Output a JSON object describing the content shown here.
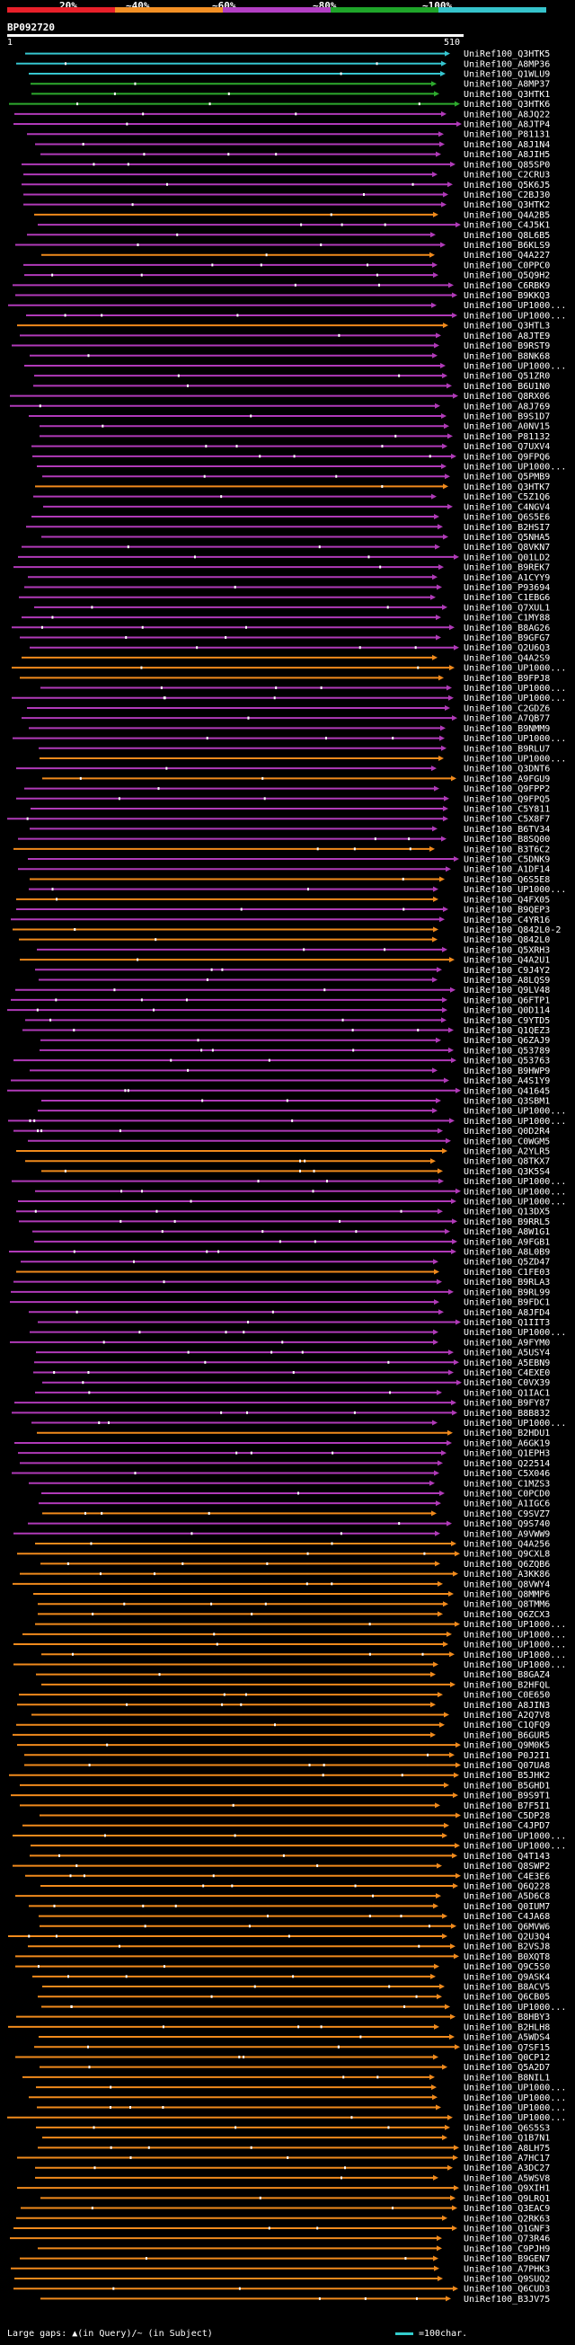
{
  "legend": {
    "percent_labels": [
      "20%",
      "~40%",
      "~60%",
      "~80%",
      "~100%"
    ],
    "colors": [
      "#e8202a",
      "#f39025",
      "#b33fc4",
      "#1fa52a",
      "#36c4cc"
    ]
  },
  "query": {
    "id": "BP092720",
    "start": "1",
    "end": "510"
  },
  "colors": {
    "orange": "#f08a1c",
    "magenta": "#b03ab8",
    "cyan": "#36c6d0",
    "green": "#2eaa2e",
    "white": "#ffffff",
    "gap": "#222"
  },
  "hits": [
    {
      "label": "UniRef100_Q3HTK5",
      "color": "cyan"
    },
    {
      "label": "UniRef100_A8MP36",
      "color": "cyan"
    },
    {
      "label": "UniRef100_Q1WLU9",
      "color": "cyan"
    },
    {
      "label": "UniRef100_A8MP37",
      "color": "green"
    },
    {
      "label": "UniRef100_Q3HTK1",
      "color": "green"
    },
    {
      "label": "UniRef100_Q3HTK6",
      "color": "green"
    },
    {
      "label": "UniRef100_A8JQ22",
      "color": "magenta"
    },
    {
      "label": "UniRef100_A8JTP4",
      "color": "magenta"
    },
    {
      "label": "UniRef100_P81131",
      "color": "magenta"
    },
    {
      "label": "UniRef100_A8J1N4",
      "color": "magenta"
    },
    {
      "label": "UniRef100_A8JIH5",
      "color": "magenta"
    },
    {
      "label": "UniRef100_Q85SP0",
      "color": "magenta"
    },
    {
      "label": "UniRef100_C2CRU3",
      "color": "magenta"
    },
    {
      "label": "UniRef100_Q5K6J5",
      "color": "magenta"
    },
    {
      "label": "UniRef100_C2BJ30",
      "color": "magenta"
    },
    {
      "label": "UniRef100_Q3HTK2",
      "color": "magenta"
    },
    {
      "label": "UniRef100_Q4A2B5",
      "color": "orange"
    },
    {
      "label": "UniRef100_C4J5K1",
      "color": "magenta"
    },
    {
      "label": "UniRef100_Q8L6B5",
      "color": "magenta"
    },
    {
      "label": "UniRef100_B6KLS9",
      "color": "magenta"
    },
    {
      "label": "UniRef100_Q4A227",
      "color": "orange"
    },
    {
      "label": "UniRef100_C0PPC0",
      "color": "magenta"
    },
    {
      "label": "UniRef100_Q5Q9H2",
      "color": "magenta"
    },
    {
      "label": "UniRef100_C6RBK9",
      "color": "magenta"
    },
    {
      "label": "UniRef100_B9KKQ3",
      "color": "magenta"
    },
    {
      "label": "UniRef100_UP1000...",
      "color": "magenta"
    },
    {
      "label": "UniRef100_UP1000...",
      "color": "magenta"
    },
    {
      "label": "UniRef100_Q3HTL3",
      "color": "orange"
    },
    {
      "label": "UniRef100_A8JTE9",
      "color": "magenta"
    },
    {
      "label": "UniRef100_B9RST9",
      "color": "magenta"
    },
    {
      "label": "UniRef100_B8NK68",
      "color": "magenta"
    },
    {
      "label": "UniRef100_UP1000...",
      "color": "magenta"
    },
    {
      "label": "UniRef100_Q51ZR0",
      "color": "magenta"
    },
    {
      "label": "UniRef100_B6U1N0",
      "color": "magenta"
    },
    {
      "label": "UniRef100_Q8RX06",
      "color": "magenta"
    },
    {
      "label": "UniRef100_A8J769",
      "color": "magenta"
    },
    {
      "label": "UniRef100_B9S1D7",
      "color": "magenta"
    },
    {
      "label": "UniRef100_A0NV15",
      "color": "magenta"
    },
    {
      "label": "UniRef100_P81132",
      "color": "magenta"
    },
    {
      "label": "UniRef100_Q7UXV4",
      "color": "magenta"
    },
    {
      "label": "UniRef100_Q9FPQ6",
      "color": "magenta"
    },
    {
      "label": "UniRef100_UP1000...",
      "color": "magenta"
    },
    {
      "label": "UniRef100_Q5PMB9",
      "color": "magenta"
    },
    {
      "label": "UniRef100_Q3HTK7",
      "color": "orange"
    },
    {
      "label": "UniRef100_C5Z1Q6",
      "color": "magenta"
    },
    {
      "label": "UniRef100_C4NGV4",
      "color": "magenta"
    },
    {
      "label": "UniRef100_Q6S5E6",
      "color": "magenta"
    },
    {
      "label": "UniRef100_B2HSI7",
      "color": "magenta"
    },
    {
      "label": "UniRef100_Q5NHA5",
      "color": "magenta"
    },
    {
      "label": "UniRef100_Q8VKN7",
      "color": "magenta"
    },
    {
      "label": "UniRef100_Q01LD2",
      "color": "magenta"
    },
    {
      "label": "UniRef100_B9REK7",
      "color": "magenta"
    },
    {
      "label": "UniRef100_A1CYY9",
      "color": "magenta"
    },
    {
      "label": "UniRef100_P93694",
      "color": "magenta"
    },
    {
      "label": "UniRef100_C1EBG6",
      "color": "magenta"
    },
    {
      "label": "UniRef100_Q7XUL1",
      "color": "magenta"
    },
    {
      "label": "UniRef100_C1MY88",
      "color": "magenta"
    },
    {
      "label": "UniRef100_B8AG26",
      "color": "magenta"
    },
    {
      "label": "UniRef100_B9GFG7",
      "color": "magenta"
    },
    {
      "label": "UniRef100_Q2U6Q3",
      "color": "magenta"
    },
    {
      "label": "UniRef100_Q4A2S9",
      "color": "orange"
    },
    {
      "label": "UniRef100_UP1000...",
      "color": "orange"
    },
    {
      "label": "UniRef100_B9FPJ8",
      "color": "orange"
    },
    {
      "label": "UniRef100_UP1000...",
      "color": "magenta"
    },
    {
      "label": "UniRef100_UP1000...",
      "color": "magenta"
    },
    {
      "label": "UniRef100_C2GDZ6",
      "color": "magenta"
    },
    {
      "label": "UniRef100_A7QB77",
      "color": "magenta"
    },
    {
      "label": "UniRef100_B9NMM9",
      "color": "magenta"
    },
    {
      "label": "UniRef100_UP1000...",
      "color": "magenta"
    },
    {
      "label": "UniRef100_B9RLU7",
      "color": "magenta"
    },
    {
      "label": "UniRef100_UP1000...",
      "color": "orange"
    },
    {
      "label": "UniRef100_Q3DNT6",
      "color": "magenta"
    },
    {
      "label": "UniRef100_A9FGU9",
      "color": "orange"
    },
    {
      "label": "UniRef100_Q9FPP2",
      "color": "magenta"
    },
    {
      "label": "UniRef100_Q9FPQ5",
      "color": "magenta"
    },
    {
      "label": "UniRef100_C5Y811",
      "color": "magenta"
    },
    {
      "label": "UniRef100_C5X8F7",
      "color": "magenta"
    },
    {
      "label": "UniRef100_B6TV34",
      "color": "magenta"
    },
    {
      "label": "UniRef100_B8SQ00",
      "color": "magenta"
    },
    {
      "label": "UniRef100_B3T6C2",
      "color": "orange"
    },
    {
      "label": "UniRef100_C5DNK9",
      "color": "magenta"
    },
    {
      "label": "UniRef100_A1DF14",
      "color": "magenta"
    },
    {
      "label": "UniRef100_Q6S5E8",
      "color": "orange"
    },
    {
      "label": "UniRef100_UP1000...",
      "color": "magenta"
    },
    {
      "label": "UniRef100_Q4FX05",
      "color": "orange"
    },
    {
      "label": "UniRef100_B9QEP3",
      "color": "magenta"
    },
    {
      "label": "UniRef100_C4YR16",
      "color": "magenta"
    },
    {
      "label": "UniRef100_Q842L0-2",
      "color": "orange"
    },
    {
      "label": "UniRef100_Q842L0",
      "color": "orange"
    },
    {
      "label": "UniRef100_Q5XRH3",
      "color": "magenta"
    },
    {
      "label": "UniRef100_Q4A2U1",
      "color": "orange"
    },
    {
      "label": "UniRef100_C9J4Y2",
      "color": "magenta"
    },
    {
      "label": "UniRef100_A8LQS9",
      "color": "magenta"
    },
    {
      "label": "UniRef100_Q9LV48",
      "color": "magenta"
    },
    {
      "label": "UniRef100_Q6FTP1",
      "color": "magenta"
    },
    {
      "label": "UniRef100_Q0D114",
      "color": "magenta"
    },
    {
      "label": "UniRef100_C9YTD5",
      "color": "magenta"
    },
    {
      "label": "UniRef100_Q1QEZ3",
      "color": "magenta"
    },
    {
      "label": "UniRef100_Q6ZAJ9",
      "color": "magenta"
    },
    {
      "label": "UniRef100_Q53789",
      "color": "magenta"
    },
    {
      "label": "UniRef100_Q53763",
      "color": "magenta"
    },
    {
      "label": "UniRef100_B9HWP9",
      "color": "magenta"
    },
    {
      "label": "UniRef100_A4S1Y9",
      "color": "magenta"
    },
    {
      "label": "UniRef100_Q41645",
      "color": "magenta"
    },
    {
      "label": "UniRef100_Q3SBM1",
      "color": "magenta"
    },
    {
      "label": "UniRef100_UP1000...",
      "color": "magenta"
    },
    {
      "label": "UniRef100_UP1000...",
      "color": "magenta"
    },
    {
      "label": "UniRef100_Q0D2R4",
      "color": "magenta"
    },
    {
      "label": "UniRef100_C0WGM5",
      "color": "magenta"
    },
    {
      "label": "UniRef100_A2YLR5",
      "color": "orange"
    },
    {
      "label": "UniRef100_Q8TKX7",
      "color": "orange"
    },
    {
      "label": "UniRef100_Q3K5S4",
      "color": "orange"
    },
    {
      "label": "UniRef100_UP1000...",
      "color": "magenta"
    },
    {
      "label": "UniRef100_UP1000...",
      "color": "magenta"
    },
    {
      "label": "UniRef100_UP1000...",
      "color": "magenta"
    },
    {
      "label": "UniRef100_Q13DX5",
      "color": "magenta"
    },
    {
      "label": "UniRef100_B9RRL5",
      "color": "magenta"
    },
    {
      "label": "UniRef100_A8W1G1",
      "color": "magenta"
    },
    {
      "label": "UniRef100_A9FGB1",
      "color": "magenta"
    },
    {
      "label": "UniRef100_A8L0B9",
      "color": "magenta"
    },
    {
      "label": "UniRef100_Q5ZD47",
      "color": "magenta"
    },
    {
      "label": "UniRef100_C1FE03",
      "color": "orange"
    },
    {
      "label": "UniRef100_B9RLA3",
      "color": "magenta"
    },
    {
      "label": "UniRef100_B9RL99",
      "color": "magenta"
    },
    {
      "label": "UniRef100_B9FDC1",
      "color": "magenta"
    },
    {
      "label": "UniRef100_A8JFD4",
      "color": "magenta"
    },
    {
      "label": "UniRef100_Q1IIT3",
      "color": "magenta"
    },
    {
      "label": "UniRef100_UP1000...",
      "color": "magenta"
    },
    {
      "label": "UniRef100_A9FYM0",
      "color": "magenta"
    },
    {
      "label": "UniRef100_A5USY4",
      "color": "magenta"
    },
    {
      "label": "UniRef100_A5EBN9",
      "color": "magenta"
    },
    {
      "label": "UniRef100_C4EXE0",
      "color": "magenta"
    },
    {
      "label": "UniRef100_C0VX39",
      "color": "magenta"
    },
    {
      "label": "UniRef100_Q1IAC1",
      "color": "magenta"
    },
    {
      "label": "UniRef100_B9FY87",
      "color": "magenta"
    },
    {
      "label": "UniRef100_B8B832",
      "color": "magenta"
    },
    {
      "label": "UniRef100_UP1000...",
      "color": "magenta"
    },
    {
      "label": "UniRef100_B2HDU1",
      "color": "orange"
    },
    {
      "label": "UniRef100_A6GK19",
      "color": "magenta"
    },
    {
      "label": "UniRef100_Q1EPH3",
      "color": "magenta"
    },
    {
      "label": "UniRef100_Q22514",
      "color": "magenta"
    },
    {
      "label": "UniRef100_C5X046",
      "color": "magenta"
    },
    {
      "label": "UniRef100_C1MZS3",
      "color": "magenta"
    },
    {
      "label": "UniRef100_C0PCD0",
      "color": "magenta"
    },
    {
      "label": "UniRef100_A1IGC6",
      "color": "magenta"
    },
    {
      "label": "UniRef100_C9SVZ7",
      "color": "orange"
    },
    {
      "label": "UniRef100_Q9S740",
      "color": "magenta"
    },
    {
      "label": "UniRef100_A9VWW9",
      "color": "magenta"
    },
    {
      "label": "UniRef100_Q4A256",
      "color": "orange"
    },
    {
      "label": "UniRef100_Q9CXL8",
      "color": "orange"
    },
    {
      "label": "UniRef100_Q6ZQB6",
      "color": "orange"
    },
    {
      "label": "UniRef100_A3KK86",
      "color": "orange"
    },
    {
      "label": "UniRef100_Q8VWY4",
      "color": "orange"
    },
    {
      "label": "UniRef100_Q8MMP6",
      "color": "orange"
    },
    {
      "label": "UniRef100_Q8TMM6",
      "color": "orange"
    },
    {
      "label": "UniRef100_Q6ZCX3",
      "color": "orange"
    },
    {
      "label": "UniRef100_UP1000...",
      "color": "orange"
    },
    {
      "label": "UniRef100_UP1000...",
      "color": "orange"
    },
    {
      "label": "UniRef100_UP1000...",
      "color": "orange"
    },
    {
      "label": "UniRef100_UP1000...",
      "color": "orange"
    },
    {
      "label": "UniRef100_UP1000...",
      "color": "orange"
    },
    {
      "label": "UniRef100_B8GAZ4",
      "color": "orange"
    },
    {
      "label": "UniRef100_B2HFQL",
      "color": "orange"
    },
    {
      "label": "UniRef100_C0E650",
      "color": "orange"
    },
    {
      "label": "UniRef100_A8JIN3",
      "color": "orange"
    },
    {
      "label": "UniRef100_A2Q7V8",
      "color": "orange"
    },
    {
      "label": "UniRef100_C1QFQ9",
      "color": "orange"
    },
    {
      "label": "UniRef100_B6GUR5",
      "color": "orange"
    },
    {
      "label": "UniRef100_Q9M0K5",
      "color": "orange"
    },
    {
      "label": "UniRef100_P0J2I1",
      "color": "orange"
    },
    {
      "label": "UniRef100_Q07UA8",
      "color": "orange"
    },
    {
      "label": "UniRef100_B5JHK2",
      "color": "orange"
    },
    {
      "label": "UniRef100_B5GHD1",
      "color": "orange"
    },
    {
      "label": "UniRef100_B9S9T1",
      "color": "orange"
    },
    {
      "label": "UniRef100_B7F5I1",
      "color": "orange"
    },
    {
      "label": "UniRef100_C5DP28",
      "color": "orange"
    },
    {
      "label": "UniRef100_C4JPD7",
      "color": "orange"
    },
    {
      "label": "UniRef100_UP1000...",
      "color": "orange"
    },
    {
      "label": "UniRef100_UP1000...",
      "color": "orange"
    },
    {
      "label": "UniRef100_Q4T143",
      "color": "orange"
    },
    {
      "label": "UniRef100_Q8SWP2",
      "color": "orange"
    },
    {
      "label": "UniRef100_C4E3E6",
      "color": "orange"
    },
    {
      "label": "UniRef100_Q6Q228",
      "color": "orange"
    },
    {
      "label": "UniRef100_A5D6C8",
      "color": "orange"
    },
    {
      "label": "UniRef100_Q0IUM7",
      "color": "orange"
    },
    {
      "label": "UniRef100_C4JA68",
      "color": "orange"
    },
    {
      "label": "UniRef100_Q6MVW6",
      "color": "orange"
    },
    {
      "label": "UniRef100_Q2U3Q4",
      "color": "orange"
    },
    {
      "label": "UniRef100_B2VSJ8",
      "color": "orange"
    },
    {
      "label": "UniRef100_B0XQT8",
      "color": "orange"
    },
    {
      "label": "UniRef100_Q9C5S0",
      "color": "orange"
    },
    {
      "label": "UniRef100_Q9ASK4",
      "color": "orange"
    },
    {
      "label": "UniRef100_B8ACV5",
      "color": "orange"
    },
    {
      "label": "UniRef100_Q6CB05",
      "color": "orange"
    },
    {
      "label": "UniRef100_UP1000...",
      "color": "orange"
    },
    {
      "label": "UniRef100_B8HBY3",
      "color": "orange"
    },
    {
      "label": "UniRef100_B2HLH8",
      "color": "orange"
    },
    {
      "label": "UniRef100_A5WDS4",
      "color": "orange"
    },
    {
      "label": "UniRef100_Q7SF15",
      "color": "orange"
    },
    {
      "label": "UniRef100_Q0CP12",
      "color": "orange"
    },
    {
      "label": "UniRef100_Q5A2D7",
      "color": "orange"
    },
    {
      "label": "UniRef100_B8NIL1",
      "color": "orange"
    },
    {
      "label": "UniRef100_UP1000...",
      "color": "orange"
    },
    {
      "label": "UniRef100_UP1000...",
      "color": "orange"
    },
    {
      "label": "UniRef100_UP1000...",
      "color": "orange"
    },
    {
      "label": "UniRef100_UP1000...",
      "color": "orange"
    },
    {
      "label": "UniRef100_Q6S5S3",
      "color": "orange"
    },
    {
      "label": "UniRef100_Q1B7N1",
      "color": "orange"
    },
    {
      "label": "UniRef100_A8LH75",
      "color": "orange"
    },
    {
      "label": "UniRef100_A7HC17",
      "color": "orange"
    },
    {
      "label": "UniRef100_A3DC27",
      "color": "orange"
    },
    {
      "label": "UniRef100_A5WSV8",
      "color": "orange"
    },
    {
      "label": "UniRef100_Q9XIH1",
      "color": "orange"
    },
    {
      "label": "UniRef100_Q9LRQ1",
      "color": "orange"
    },
    {
      "label": "UniRef100_Q3EAC9",
      "color": "orange"
    },
    {
      "label": "UniRef100_Q2RK63",
      "color": "orange"
    },
    {
      "label": "UniRef100_Q1GNF3",
      "color": "orange"
    },
    {
      "label": "UniRef100_Q73R46",
      "color": "orange"
    },
    {
      "label": "UniRef100_C9PJH9",
      "color": "orange"
    },
    {
      "label": "UniRef100_B9GEN7",
      "color": "orange"
    },
    {
      "label": "UniRef100_A7PHK3",
      "color": "orange"
    },
    {
      "label": "UniRef100_Q9SUQ2",
      "color": "orange"
    },
    {
      "label": "UniRef100_Q6CUD3",
      "color": "orange"
    },
    {
      "label": "UniRef100_B3JV75",
      "color": "orange"
    }
  ],
  "footer": {
    "gaps_text": "Large gaps: ▲(in Query)/~ (in Subject)",
    "scale_text": "=100char."
  }
}
